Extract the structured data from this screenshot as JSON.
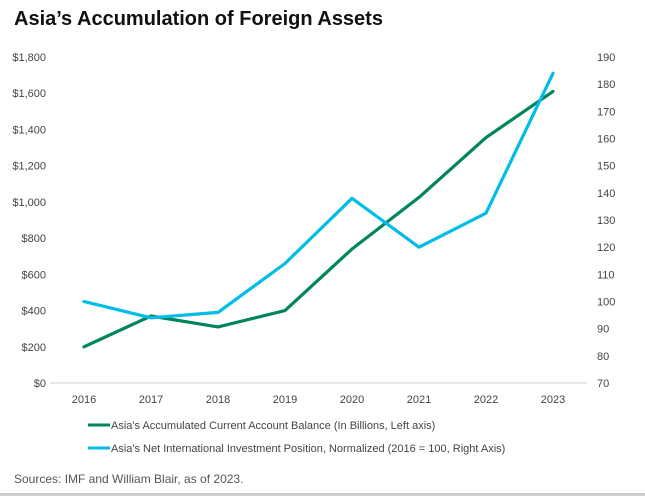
{
  "chart_data": {
    "type": "line",
    "title": "Asia’s Accumulation of Foreign Assets",
    "x": [
      "2016",
      "2017",
      "2018",
      "2019",
      "2020",
      "2021",
      "2022",
      "2023"
    ],
    "left_axis": {
      "range": [
        0,
        1800
      ],
      "ticks": [
        "$0",
        "$200",
        "$400",
        "$600",
        "$800",
        "$1,000",
        "$1,200",
        "$1,400",
        "$1,600",
        "$1,800"
      ],
      "step": 200
    },
    "right_axis": {
      "range": [
        70,
        190
      ],
      "ticks": [
        "70",
        "80",
        "90",
        "100",
        "110",
        "120",
        "130",
        "140",
        "150",
        "160",
        "170",
        "180",
        "190"
      ],
      "step": 10
    },
    "grid": false,
    "legend_placement": "bottom",
    "series": [
      {
        "name": "Asia's Accumulated Current Account Balance (In Billions, Left axis)",
        "axis": "left",
        "color": "#00855f",
        "values": [
          200,
          370,
          310,
          400,
          740,
          1025,
          1355,
          1610
        ]
      },
      {
        "name": "Asia's Net International Investment Position, Normalized (2016 = 100, Right Axis)",
        "axis": "right",
        "color": "#00bde8",
        "values": [
          100,
          94,
          96,
          114,
          138,
          120,
          132.5,
          184
        ]
      }
    ]
  },
  "source": "Sources: IMF and William Blair, as of 2023."
}
